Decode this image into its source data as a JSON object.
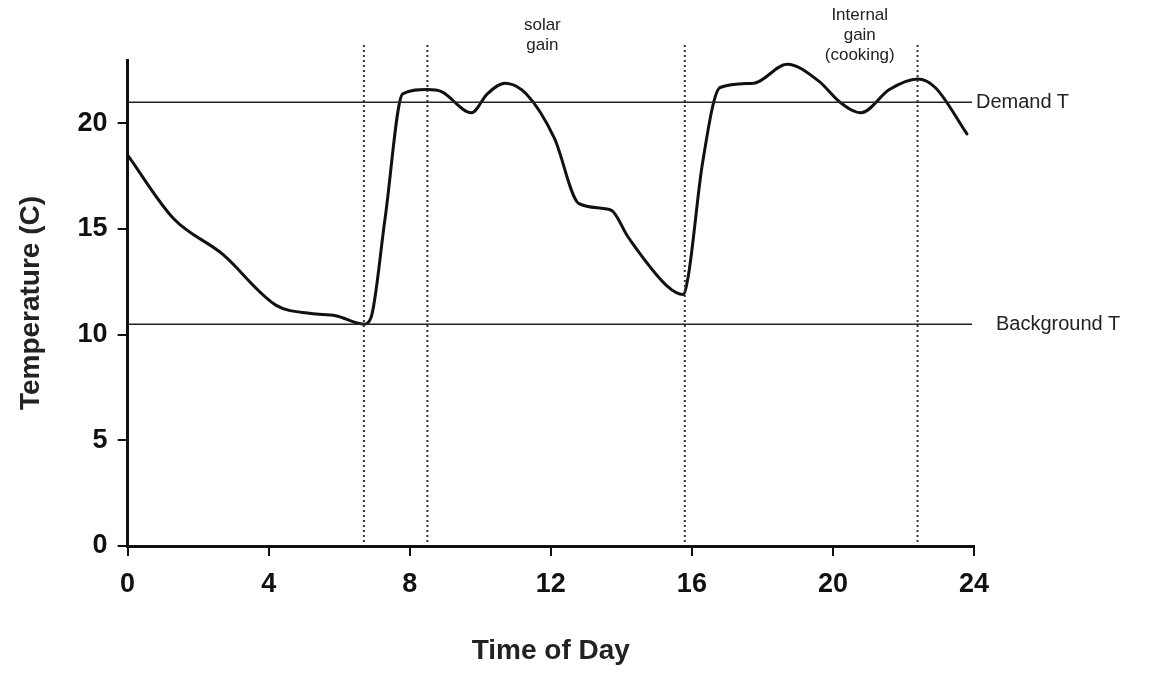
{
  "chart_data": {
    "type": "line",
    "xlabel": "Time of Day",
    "ylabel": "Temperature (C)",
    "xlim": [
      0,
      24
    ],
    "xticks": [
      0,
      4,
      8,
      12,
      16,
      20,
      24
    ],
    "ylim": [
      0,
      23
    ],
    "yticks": [
      0,
      5,
      10,
      15,
      20
    ],
    "grid": false,
    "legend": false,
    "marker": "none",
    "line_style": "solid",
    "series": [
      {
        "color": "#111111",
        "x": [
          0,
          1.3,
          2.7,
          4.2,
          5.2,
          5.9,
          6.7,
          6.9,
          7.3,
          7.8,
          8.5,
          8.9,
          9.75,
          10.2,
          10.7,
          11.3,
          12.1,
          12.8,
          13.7,
          14.2,
          15.3,
          15.75,
          15.9,
          16.3,
          16.8,
          17.75,
          18.7,
          19.6,
          20.2,
          20.8,
          21.6,
          22.4,
          22.9,
          23.8
        ],
        "values": [
          18.5,
          15.5,
          13.8,
          11.4,
          11.0,
          10.9,
          10.5,
          10.8,
          15.5,
          21.4,
          21.6,
          21.5,
          20.5,
          21.4,
          21.9,
          21.4,
          19.3,
          16.2,
          15.9,
          14.6,
          12.3,
          11.9,
          12.8,
          18.1,
          21.7,
          21.9,
          22.8,
          22.0,
          21.0,
          20.5,
          21.6,
          22.1,
          21.7,
          19.5
        ]
      }
    ],
    "ref_lines": [
      {
        "axis": "y",
        "value": 21,
        "label": "Demand T",
        "color": "#222222",
        "line_style": "solid"
      },
      {
        "axis": "y",
        "value": 10.5,
        "label": "Background T",
        "color": "#222222",
        "line_style": "solid"
      },
      {
        "axis": "x",
        "value": 6.7,
        "color": "#333333",
        "line_style": "dotted"
      },
      {
        "axis": "x",
        "value": 8.5,
        "color": "#333333",
        "line_style": "dotted"
      },
      {
        "axis": "x",
        "value": 15.8,
        "color": "#333333",
        "line_style": "dotted"
      },
      {
        "axis": "x",
        "value": 22.4,
        "color": "#333333",
        "line_style": "dotted"
      }
    ],
    "annotations": [
      "solar\ngain",
      "Internal\ngain\n(cooking)"
    ]
  }
}
